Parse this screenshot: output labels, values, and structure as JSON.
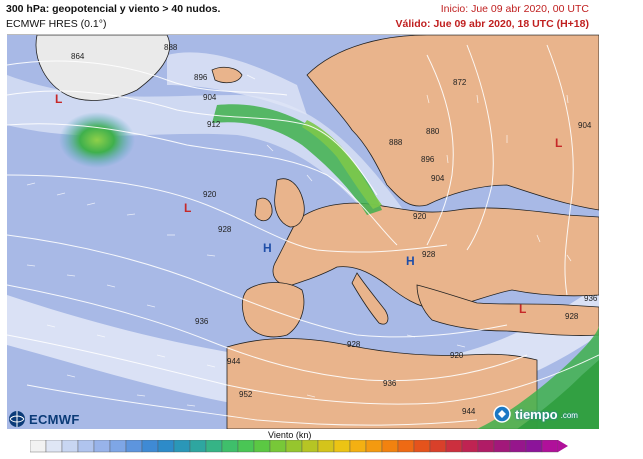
{
  "header": {
    "title": "300 hPa: geopotencial y viento > 40 nudos.",
    "model": "ECMWF HRES (0.1°)",
    "init": "Inicio: Jue 09 abr 2020, 00 UTC",
    "valid": "Válido: Jue 09 abr 2020, 18 UTC (H+18)"
  },
  "contour_labels": [
    "864",
    "888",
    "896",
    "904",
    "912",
    "920",
    "928",
    "936",
    "944",
    "952",
    "872",
    "880",
    "888",
    "896",
    "904",
    "920",
    "928",
    "928",
    "920",
    "936",
    "944",
    "904",
    "936",
    "928"
  ],
  "pressure_centers": [
    {
      "symbol": "L",
      "color": "#c62828"
    },
    {
      "symbol": "L",
      "color": "#c62828"
    },
    {
      "symbol": "H",
      "color": "#1f4ea8"
    },
    {
      "symbol": "H",
      "color": "#1f4ea8"
    },
    {
      "symbol": "L",
      "color": "#c62828"
    },
    {
      "symbol": "L",
      "color": "#c62828"
    }
  ],
  "logos": {
    "ecmwf": "ECMWF",
    "tiempo": "tiempo",
    "tiempo_domain": ".com"
  },
  "scale": {
    "title": "Viento (kn)",
    "colors": [
      "#f2f2f2",
      "#dfe6f5",
      "#c8d6f2",
      "#b0c4ee",
      "#98b3ea",
      "#7ea6e6",
      "#5d95de",
      "#3f8ad4",
      "#2d8bc9",
      "#2a97b8",
      "#2ea6a0",
      "#36b486",
      "#3fbf6b",
      "#4ac655",
      "#5bc843",
      "#78c838",
      "#96c62e",
      "#b6c524",
      "#d4c41b",
      "#ecc414",
      "#f4b012",
      "#f49a10",
      "#f2820f",
      "#ee6a14",
      "#e5531c",
      "#d9402a",
      "#cc2f3e",
      "#bf2352",
      "#b01c66",
      "#a2187a",
      "#96168c",
      "#8c149a",
      "#b0109a"
    ]
  },
  "colors": {
    "ocean": "#a8b9e6",
    "land": "#e9b48c",
    "jet_core": "#3fb04c"
  }
}
